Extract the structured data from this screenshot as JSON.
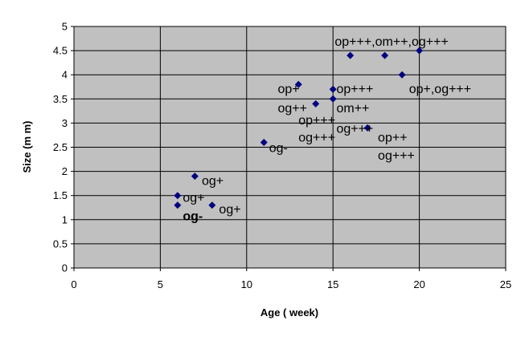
{
  "chart_data": {
    "type": "scatter",
    "title": "",
    "xlabel": "Age ( week)",
    "ylabel": "Size (m m)",
    "xlim": [
      0,
      25
    ],
    "ylim": [
      0,
      5
    ],
    "x_ticks": [
      0,
      5,
      10,
      15,
      20,
      25
    ],
    "y_ticks": [
      0,
      0.5,
      1,
      1.5,
      2,
      2.5,
      3,
      3.5,
      4,
      4.5,
      5
    ],
    "x_tick_labels": [
      "0",
      "5",
      "10",
      "15",
      "20",
      "25"
    ],
    "y_tick_labels": [
      "0",
      "0.5",
      "1",
      "1.5",
      "2",
      "2.5",
      "3",
      "3.5",
      "4",
      "4.5",
      "5"
    ],
    "grid": true,
    "plot_background": "#c0c0c0",
    "marker_color": "#000080",
    "points": [
      {
        "x": 6,
        "y": 1.5
      },
      {
        "x": 6,
        "y": 1.3
      },
      {
        "x": 7,
        "y": 1.9
      },
      {
        "x": 8,
        "y": 1.3
      },
      {
        "x": 11,
        "y": 2.6
      },
      {
        "x": 13,
        "y": 3.8
      },
      {
        "x": 14,
        "y": 3.4
      },
      {
        "x": 15,
        "y": 3.7
      },
      {
        "x": 15,
        "y": 3.5
      },
      {
        "x": 16,
        "y": 4.4
      },
      {
        "x": 17,
        "y": 2.9
      },
      {
        "x": 18,
        "y": 4.4
      },
      {
        "x": 19,
        "y": 4.0
      },
      {
        "x": 20,
        "y": 4.5
      }
    ],
    "annotations": [
      {
        "text": "op+++,om++,og+++",
        "x": 15.1,
        "y": 4.6
      },
      {
        "text": "op+++",
        "x": 15.2,
        "y": 3.62
      },
      {
        "text": "op+,og+++",
        "x": 19.4,
        "y": 3.62
      },
      {
        "text": "op+",
        "x": 11.8,
        "y": 3.62
      },
      {
        "text": "og++",
        "x": 11.8,
        "y": 3.22
      },
      {
        "text": "om++",
        "x": 15.2,
        "y": 3.22
      },
      {
        "text": "op+++",
        "x": 13.0,
        "y": 2.97
      },
      {
        "text": "og+++",
        "x": 15.2,
        "y": 2.8
      },
      {
        "text": "og+++",
        "x": 13.0,
        "y": 2.62
      },
      {
        "text": "op++",
        "x": 17.6,
        "y": 2.62
      },
      {
        "text": "og-",
        "x": 11.3,
        "y": 2.4
      },
      {
        "text": "og+++",
        "x": 17.6,
        "y": 2.24
      },
      {
        "text": "og+",
        "x": 7.4,
        "y": 1.72
      },
      {
        "text": "og+",
        "x": 6.3,
        "y": 1.37
      },
      {
        "text": "og+",
        "x": 8.4,
        "y": 1.13
      },
      {
        "text": "og-",
        "x": 6.3,
        "y": 0.99,
        "bold": true
      }
    ]
  }
}
